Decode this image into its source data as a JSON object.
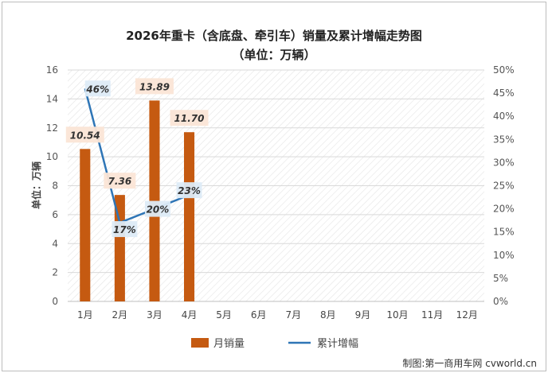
{
  "title": "2026年重卡（含底盘、牵引车）销量及累计增幅走势图",
  "subtitle": "（单位：万辆）",
  "source": "制图:第一商用车网 cvworld.cn",
  "colors": {
    "bar": "#c55a11",
    "line": "#2e75b6",
    "bar_label_bg": "#fbe5d6",
    "line_label_bg": "#ddebf7"
  },
  "chart_data": {
    "type": "bar",
    "categories": [
      "1月",
      "2月",
      "3月",
      "4月",
      "5月",
      "6月",
      "7月",
      "8月",
      "9月",
      "10月",
      "11月",
      "12月"
    ],
    "series": [
      {
        "name": "月销量",
        "type": "bar",
        "axis": "left",
        "values": [
          10.54,
          7.36,
          13.89,
          11.7,
          null,
          null,
          null,
          null,
          null,
          null,
          null,
          null
        ],
        "labels": [
          "10.54",
          "7.36",
          "13.89",
          "11.70"
        ]
      },
      {
        "name": "累计增幅",
        "type": "line",
        "axis": "right",
        "values": [
          46,
          17,
          20,
          23,
          null,
          null,
          null,
          null,
          null,
          null,
          null,
          null
        ],
        "labels": [
          "46%",
          "17%",
          "20%",
          "23%"
        ]
      }
    ],
    "ylabel": "单位：万辆",
    "ylim": [
      0,
      16
    ],
    "yticks": [
      "0",
      "2",
      "4",
      "6",
      "8",
      "10",
      "12",
      "14",
      "16"
    ],
    "y2lim": [
      0,
      50
    ],
    "y2ticks": [
      "0%",
      "5%",
      "10%",
      "15%",
      "20%",
      "25%",
      "30%",
      "35%",
      "40%",
      "45%",
      "50%"
    ],
    "grid": "horizontal",
    "legend": "bottom"
  }
}
